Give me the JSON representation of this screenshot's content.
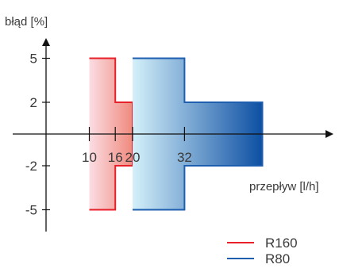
{
  "chart_data": {
    "type": "area",
    "ylabel": "błąd [%]",
    "xlabel": "przepływ [l/h]",
    "xlim": [
      0,
      50
    ],
    "ylim": [
      -7,
      7.5
    ],
    "x_ticks": [
      10,
      16,
      20,
      32
    ],
    "y_ticks": [
      5,
      2,
      -2,
      -5
    ],
    "series": [
      {
        "name": "R160",
        "color": "#e8202a",
        "fill_start": "#fbdde3",
        "fill_end": "#f08a7e",
        "bands": [
          {
            "x_from": 10,
            "x_to": 16,
            "error_limit": 5
          },
          {
            "x_from": 16,
            "x_to": 20,
            "error_limit": 2
          }
        ]
      },
      {
        "name": "R80",
        "color": "#1f5fb0",
        "fill_start": "#d4f0fa",
        "fill_end": "#0d4fa3",
        "bands": [
          {
            "x_from": 20,
            "x_to": 32,
            "error_limit": 5
          },
          {
            "x_from": 32,
            "x_to": 50,
            "error_limit": 2
          }
        ]
      }
    ],
    "legend": {
      "position": "bottom-right",
      "entries": [
        "R160",
        "R80"
      ]
    },
    "grid": false
  }
}
